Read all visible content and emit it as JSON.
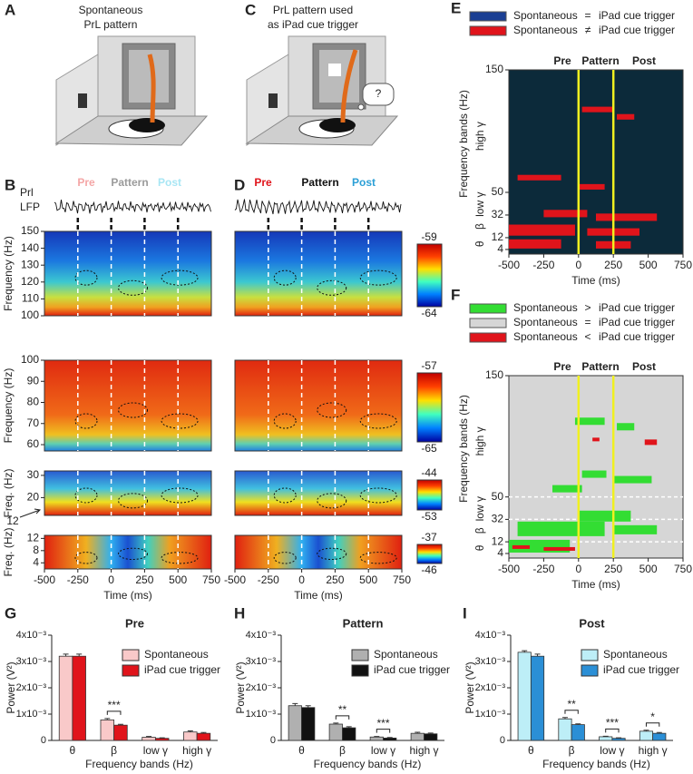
{
  "panel_labels": [
    "A",
    "B",
    "C",
    "D",
    "E",
    "F",
    "G",
    "H",
    "I"
  ],
  "panel_a": {
    "title": [
      "Spontaneous",
      "PrL pattern"
    ]
  },
  "panel_c": {
    "title": [
      "PrL pattern used",
      "as iPad cue trigger"
    ],
    "thought": "?"
  },
  "lfp": {
    "label": [
      "Prl",
      "LFP"
    ],
    "periods_b": [
      "Pre",
      "Pattern",
      "Post"
    ],
    "periods_d": [
      "Pre",
      "Pattern",
      "Post"
    ]
  },
  "heatmaps": {
    "xlim": [
      -500,
      750
    ],
    "xticks": [
      -500,
      -250,
      0,
      250,
      500,
      750
    ],
    "xlabel": "Time (ms)",
    "rows": [
      {
        "ylabel": "Frequency (Hz)",
        "ylim": [
          100,
          150
        ],
        "yticks": [
          100,
          110,
          120,
          130,
          140,
          150
        ],
        "colorbar": [
          -59,
          -64
        ]
      },
      {
        "ylabel": "Frequency (Hz)",
        "ylim": [
          57,
          100
        ],
        "yticks": [
          60,
          70,
          80,
          90,
          100
        ],
        "colorbar": [
          -57,
          -65
        ]
      },
      {
        "ylabel": "Freq. (Hz)",
        "ylim": [
          12,
          32
        ],
        "yticks": [
          20,
          30
        ],
        "colorbar": [
          -44,
          -53
        ],
        "bottom_label": 12
      },
      {
        "ylabel": "Freq. (Hz)",
        "ylim": [
          2,
          13
        ],
        "yticks": [
          4,
          8,
          12
        ],
        "colorbar": [
          -37,
          -46
        ]
      }
    ]
  },
  "panel_e": {
    "legend": [
      {
        "left": "Spontaneous",
        "op": "=",
        "right": "iPad cue trigger",
        "color": "#1b3f93"
      },
      {
        "left": "Spontaneous",
        "op": "≠",
        "right": "iPad cue trigger",
        "color": "#e0141b"
      }
    ],
    "periods": [
      "Pre",
      "Pattern",
      "Post"
    ],
    "ylabel": "Frequency bands (Hz)",
    "bands": [
      "θ",
      "β",
      "low γ",
      "high γ"
    ],
    "yticks": [
      4,
      12,
      32,
      50,
      150
    ],
    "xlim": [
      -500,
      750
    ],
    "xticks": [
      -500,
      -250,
      0,
      250,
      500,
      750
    ],
    "xlabel": "Time (ms)"
  },
  "panel_f": {
    "legend": [
      {
        "left": "Spontaneous",
        "op": ">",
        "right": "iPad cue trigger",
        "color": "#33dd33"
      },
      {
        "left": "Spontaneous",
        "op": "=",
        "right": "iPad cue trigger",
        "color": "#d6d6d6"
      },
      {
        "left": "Spontaneous",
        "op": "<",
        "right": "iPad cue trigger",
        "color": "#e0141b"
      }
    ],
    "periods": [
      "Pre",
      "Pattern",
      "Post"
    ],
    "ylabel": "Frequency bands (Hz)",
    "bands": [
      "θ",
      "β",
      "low γ",
      "high γ"
    ],
    "yticks": [
      4,
      12,
      32,
      50,
      150
    ],
    "xlim": [
      -500,
      750
    ],
    "xticks": [
      -500,
      -250,
      0,
      250,
      500,
      750
    ],
    "xlabel": "Time (ms)"
  },
  "chart_data": [
    {
      "type": "bar",
      "title": "Pre",
      "ylabel": "Power (V²)",
      "xlabel": "Frequency bands (Hz)",
      "categories": [
        "θ",
        "β",
        "low γ",
        "high γ"
      ],
      "ylim": [
        0,
        0.004
      ],
      "yticks": [
        0,
        {
          "value": 0.001,
          "label": "1x10⁻³"
        },
        {
          "value": 0.002,
          "label": "2x10⁻³"
        },
        {
          "value": 0.003,
          "label": "3x10⁻³"
        },
        {
          "value": 0.004,
          "label": "4x10⁻³"
        }
      ],
      "series": [
        {
          "name": "Spontaneous",
          "color": "#f9c9c9",
          "values": [
            0.0032,
            0.00078,
            0.00012,
            0.00032
          ],
          "errors": [
            8e-05,
            5e-05,
            3e-05,
            4e-05
          ]
        },
        {
          "name": "iPad cue trigger",
          "color": "#e0141b",
          "values": [
            0.0032,
            0.00058,
            8e-05,
            0.00027
          ],
          "errors": [
            8e-05,
            3e-05,
            2e-05,
            3e-05
          ]
        }
      ],
      "significance": [
        null,
        "***",
        null,
        null
      ]
    },
    {
      "type": "bar",
      "title": "Pattern",
      "ylabel": "Power (V²)",
      "xlabel": "Frequency bands (Hz)",
      "categories": [
        "θ",
        "β",
        "low γ",
        "high γ"
      ],
      "ylim": [
        0,
        0.004
      ],
      "yticks": [
        0,
        {
          "value": 0.001,
          "label": "1x10⁻³"
        },
        {
          "value": 0.002,
          "label": "2x10⁻³"
        },
        {
          "value": 0.003,
          "label": "3x10⁻³"
        },
        {
          "value": 0.004,
          "label": "4x10⁻³"
        }
      ],
      "series": [
        {
          "name": "Spontaneous",
          "color": "#b0b0b0",
          "values": [
            0.00132,
            0.00062,
            0.00013,
            0.00027
          ],
          "errors": [
            8e-05,
            4e-05,
            2e-05,
            4e-05
          ]
        },
        {
          "name": "iPad cue trigger",
          "color": "#111111",
          "values": [
            0.00125,
            0.00048,
            9e-05,
            0.00025
          ],
          "errors": [
            7e-05,
            4e-05,
            2e-05,
            3e-05
          ]
        }
      ],
      "significance": [
        null,
        "**",
        "***",
        null
      ]
    },
    {
      "type": "bar",
      "title": "Post",
      "ylabel": "Power (V²)",
      "xlabel": "Frequency bands (Hz)",
      "categories": [
        "θ",
        "β",
        "low γ",
        "high γ"
      ],
      "ylim": [
        0,
        0.004
      ],
      "yticks": [
        0,
        {
          "value": 0.001,
          "label": "1x10⁻³"
        },
        {
          "value": 0.002,
          "label": "2x10⁻³"
        },
        {
          "value": 0.003,
          "label": "3x10⁻³"
        },
        {
          "value": 0.004,
          "label": "4x10⁻³"
        }
      ],
      "series": [
        {
          "name": "Spontaneous",
          "color": "#bdeef7",
          "values": [
            0.00335,
            0.00082,
            0.00014,
            0.00035
          ],
          "errors": [
            6e-05,
            5e-05,
            2e-05,
            4e-05
          ]
        },
        {
          "name": "iPad cue trigger",
          "color": "#2b8fd6",
          "values": [
            0.0032,
            0.0006,
            8e-05,
            0.00027
          ],
          "errors": [
            8e-05,
            3e-05,
            2e-05,
            3e-05
          ]
        }
      ],
      "significance": [
        null,
        "**",
        "***",
        "*"
      ]
    }
  ]
}
